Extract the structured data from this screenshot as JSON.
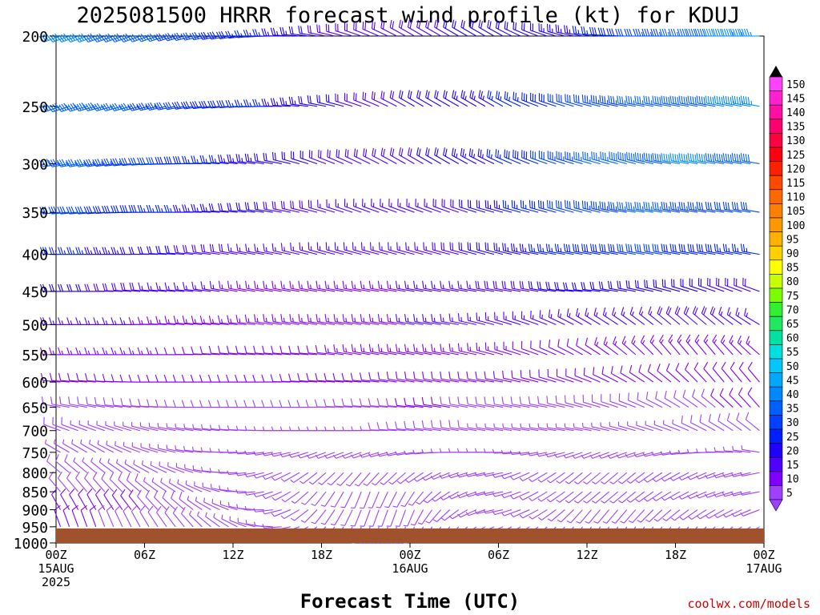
{
  "chart_data": {
    "type": "wind-barb profile",
    "title": "2025081500 HRRR forecast wind profile (kt) for KDUJ",
    "xlabel": "Forecast Time (UTC)",
    "ylabel": "",
    "x_range_hours": [
      0,
      48
    ],
    "y_range_hpa": [
      200,
      1000
    ],
    "y_ticks": [
      {
        "label": "200",
        "value": 200
      },
      {
        "label": "250",
        "value": 250
      },
      {
        "label": "300",
        "value": 300
      },
      {
        "label": "350",
        "value": 350
      },
      {
        "label": "400",
        "value": 400
      },
      {
        "label": "450",
        "value": 450
      },
      {
        "label": "500",
        "value": 500
      },
      {
        "label": "550",
        "value": 550
      },
      {
        "label": "600",
        "value": 600
      },
      {
        "label": "650",
        "value": 650
      },
      {
        "label": "700",
        "value": 700
      },
      {
        "label": "750",
        "value": 750
      },
      {
        "label": "800",
        "value": 800
      },
      {
        "label": "850",
        "value": 850
      },
      {
        "label": "900",
        "value": 900
      },
      {
        "label": "950",
        "value": 950
      },
      {
        "label": "1000",
        "value": 1000
      }
    ],
    "x_ticks": [
      {
        "hour": 0,
        "lines": [
          "00Z",
          "15AUG",
          "2025"
        ]
      },
      {
        "hour": 6,
        "lines": [
          "06Z"
        ]
      },
      {
        "hour": 12,
        "lines": [
          "12Z"
        ]
      },
      {
        "hour": 18,
        "lines": [
          "18Z"
        ]
      },
      {
        "hour": 24,
        "lines": [
          "00Z",
          "16AUG"
        ]
      },
      {
        "hour": 30,
        "lines": [
          "06Z"
        ]
      },
      {
        "hour": 36,
        "lines": [
          "12Z"
        ]
      },
      {
        "hour": 42,
        "lines": [
          "18Z"
        ]
      },
      {
        "hour": 48,
        "lines": [
          "00Z",
          "17AUG"
        ]
      }
    ],
    "surface_pressure_hpa": 955,
    "surface_color": "#a0522d",
    "colorbar": {
      "unit": "kt",
      "labels": [
        "150",
        "145",
        "140",
        "135",
        "130",
        "125",
        "120",
        "115",
        "110",
        "105",
        "100",
        "95",
        "90",
        "85",
        "80",
        "75",
        "70",
        "65",
        "60",
        "55",
        "50",
        "45",
        "40",
        "35",
        "30",
        "25",
        "20",
        "15",
        "10",
        "5"
      ],
      "colors": [
        "#ff40ff",
        "#ff20d0",
        "#ff10a0",
        "#ff0070",
        "#ff0040",
        "#ff0010",
        "#ff2000",
        "#ff4800",
        "#ff6800",
        "#ff8000",
        "#ff9800",
        "#ffb000",
        "#ffd000",
        "#ffff00",
        "#c8ff00",
        "#78ff00",
        "#30f030",
        "#20e860",
        "#00e0a0",
        "#00e0e0",
        "#00c8ff",
        "#00a8ff",
        "#0088ff",
        "#0060ff",
        "#0040ff",
        "#0020ff",
        "#2000ff",
        "#5000ff",
        "#8000ff",
        "#a040ff"
      ]
    },
    "wind_profile": [
      {
        "p": 200,
        "dir": [
          250,
          250,
          250,
          255,
          260,
          270,
          280,
          290,
          300,
          300,
          300,
          290,
          280,
          270,
          270,
          270,
          270
        ],
        "spd": [
          45,
          40,
          38,
          32,
          28,
          25,
          20,
          18,
          18,
          20,
          20,
          22,
          25,
          30,
          35,
          40,
          45
        ]
      },
      {
        "p": 250,
        "dir": [
          250,
          255,
          255,
          260,
          265,
          270,
          280,
          290,
          300,
          300,
          300,
          290,
          285,
          280,
          280,
          280,
          280
        ],
        "spd": [
          40,
          38,
          35,
          30,
          28,
          25,
          22,
          18,
          20,
          22,
          25,
          28,
          32,
          35,
          38,
          40,
          45
        ]
      },
      {
        "p": 300,
        "dir": [
          260,
          260,
          265,
          270,
          275,
          280,
          290,
          295,
          300,
          300,
          295,
          290,
          285,
          285,
          280,
          280,
          280
        ],
        "spd": [
          38,
          35,
          32,
          28,
          25,
          22,
          20,
          18,
          18,
          22,
          25,
          30,
          35,
          38,
          40,
          40,
          38
        ]
      },
      {
        "p": 350,
        "dir": [
          265,
          265,
          270,
          270,
          275,
          280,
          285,
          290,
          290,
          290,
          285,
          285,
          285,
          280,
          280,
          280,
          280
        ],
        "spd": [
          32,
          30,
          28,
          25,
          22,
          20,
          18,
          16,
          16,
          18,
          22,
          28,
          32,
          35,
          35,
          32,
          30
        ]
      },
      {
        "p": 400,
        "dir": [
          270,
          270,
          270,
          275,
          280,
          280,
          285,
          285,
          285,
          285,
          285,
          280,
          280,
          280,
          280,
          280,
          280
        ],
        "spd": [
          28,
          25,
          22,
          20,
          18,
          16,
          15,
          15,
          15,
          18,
          22,
          25,
          28,
          30,
          30,
          28,
          25
        ]
      },
      {
        "p": 450,
        "dir": [
          270,
          270,
          275,
          275,
          280,
          280,
          280,
          280,
          280,
          280,
          280,
          280,
          275,
          280,
          285,
          290,
          290
        ],
        "spd": [
          22,
          20,
          18,
          16,
          15,
          14,
          14,
          14,
          15,
          16,
          18,
          20,
          20,
          22,
          22,
          20,
          18
        ]
      },
      {
        "p": 500,
        "dir": [
          270,
          270,
          270,
          275,
          275,
          280,
          280,
          280,
          280,
          280,
          285,
          290,
          300,
          305,
          310,
          310,
          300
        ],
        "spd": [
          18,
          16,
          15,
          14,
          13,
          13,
          13,
          14,
          15,
          15,
          16,
          15,
          15,
          16,
          18,
          18,
          16
        ]
      },
      {
        "p": 550,
        "dir": [
          270,
          270,
          270,
          270,
          275,
          275,
          275,
          280,
          280,
          280,
          285,
          290,
          300,
          310,
          320,
          320,
          310
        ],
        "spd": [
          15,
          14,
          13,
          12,
          12,
          12,
          12,
          13,
          14,
          14,
          13,
          12,
          12,
          13,
          14,
          15,
          14
        ]
      },
      {
        "p": 600,
        "dir": [
          275,
          275,
          270,
          270,
          270,
          270,
          275,
          275,
          280,
          280,
          280,
          285,
          290,
          300,
          310,
          320,
          320
        ],
        "spd": [
          12,
          11,
          10,
          10,
          10,
          10,
          10,
          11,
          12,
          12,
          11,
          10,
          10,
          10,
          11,
          12,
          12
        ]
      },
      {
        "p": 650,
        "dir": [
          280,
          280,
          275,
          270,
          270,
          270,
          270,
          275,
          275,
          280,
          280,
          280,
          285,
          290,
          300,
          310,
          320
        ],
        "spd": [
          10,
          9,
          8,
          8,
          8,
          8,
          8,
          9,
          10,
          10,
          9,
          8,
          8,
          8,
          9,
          10,
          10
        ]
      },
      {
        "p": 700,
        "dir": [
          290,
          290,
          285,
          280,
          275,
          270,
          270,
          270,
          275,
          280,
          280,
          280,
          280,
          285,
          290,
          300,
          310
        ],
        "spd": [
          8,
          7,
          6,
          6,
          6,
          6,
          6,
          7,
          8,
          8,
          7,
          6,
          6,
          6,
          7,
          8,
          8
        ]
      },
      {
        "p": 750,
        "dir": [
          300,
          300,
          290,
          280,
          270,
          260,
          250,
          250,
          260,
          270,
          270,
          260,
          250,
          250,
          260,
          270,
          280
        ],
        "spd": [
          7,
          6,
          5,
          5,
          5,
          5,
          5,
          5,
          6,
          6,
          6,
          5,
          5,
          5,
          5,
          6,
          6
        ]
      },
      {
        "p": 800,
        "dir": [
          310,
          310,
          300,
          290,
          270,
          250,
          230,
          220,
          230,
          250,
          260,
          240,
          230,
          230,
          240,
          250,
          260
        ],
        "spd": [
          8,
          7,
          6,
          5,
          5,
          5,
          5,
          5,
          5,
          6,
          6,
          5,
          5,
          5,
          5,
          5,
          6
        ]
      },
      {
        "p": 850,
        "dir": [
          320,
          320,
          310,
          300,
          280,
          250,
          220,
          200,
          210,
          240,
          260,
          240,
          230,
          230,
          240,
          250,
          260
        ],
        "spd": [
          10,
          9,
          8,
          6,
          5,
          5,
          5,
          5,
          5,
          6,
          6,
          5,
          5,
          5,
          5,
          5,
          6
        ]
      },
      {
        "p": 900,
        "dir": [
          330,
          330,
          320,
          310,
          290,
          260,
          220,
          200,
          200,
          230,
          260,
          240,
          220,
          220,
          230,
          240,
          250
        ],
        "spd": [
          12,
          12,
          10,
          8,
          6,
          5,
          5,
          5,
          5,
          6,
          6,
          5,
          5,
          5,
          5,
          5,
          6
        ]
      },
      {
        "p": 950,
        "dir": [
          340,
          340,
          330,
          320,
          300,
          270,
          230,
          200,
          200,
          220,
          250,
          230,
          210,
          210,
          220,
          230,
          240
        ],
        "spd": [
          10,
          10,
          9,
          8,
          6,
          5,
          5,
          5,
          5,
          5,
          5,
          5,
          5,
          5,
          5,
          5,
          5
        ]
      }
    ]
  },
  "footer": {
    "credit": "coolwx.com/models",
    "credit_color": "#cc0000"
  }
}
